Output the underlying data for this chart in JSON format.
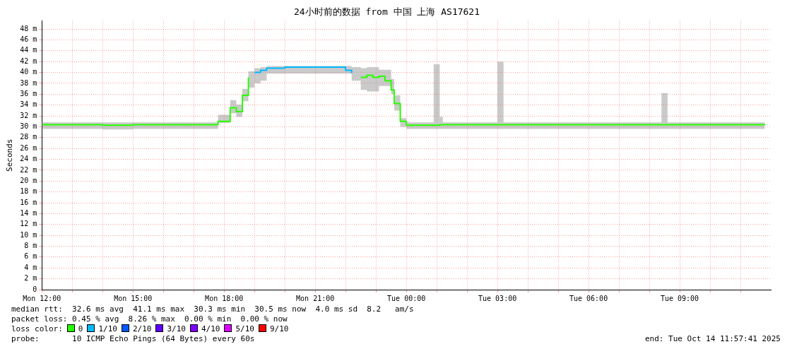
{
  "chart_data": {
    "type": "step",
    "title": "24小时前的数据 from 中国 上海 AS17621",
    "ylabel": "Seconds",
    "legend_title": "loss color:",
    "legend": "bottom",
    "grid": true,
    "x": [
      "2025-10-13T12:00",
      "2025-10-13T13:00",
      "2025-10-13T14:00",
      "2025-10-13T15:00",
      "2025-10-13T16:00",
      "2025-10-13T17:00",
      "2025-10-13T17:48",
      "2025-10-13T18:12",
      "2025-10-13T18:24",
      "2025-10-13T18:36",
      "2025-10-13T18:48",
      "2025-10-13T19:00",
      "2025-10-13T19:12",
      "2025-10-13T19:24",
      "2025-10-13T20:00",
      "2025-10-13T21:00",
      "2025-10-13T22:00",
      "2025-10-13T22:12",
      "2025-10-13T22:30",
      "2025-10-13T22:42",
      "2025-10-13T22:54",
      "2025-10-13T23:06",
      "2025-10-13T23:18",
      "2025-10-13T23:30",
      "2025-10-13T23:36",
      "2025-10-13T23:48",
      "2025-10-14T00:00",
      "2025-10-14T00:54",
      "2025-10-14T01:06",
      "2025-10-14T01:12",
      "2025-10-14T02:00",
      "2025-10-14T03:00",
      "2025-10-14T03:12",
      "2025-10-14T04:00",
      "2025-10-14T05:00",
      "2025-10-14T06:00",
      "2025-10-14T07:00",
      "2025-10-14T08:24",
      "2025-10-14T08:36",
      "2025-10-14T09:00",
      "2025-10-14T10:00",
      "2025-10-14T11:00",
      "2025-10-14T11:48"
    ],
    "series": [
      {
        "name": "0",
        "color": "#26ff00",
        "values": [
          30.4,
          30.4,
          30.3,
          30.4,
          30.4,
          30.4,
          31.0,
          33.5,
          32.8,
          35.8,
          39.1,
          null,
          null,
          null,
          null,
          null,
          null,
          null,
          39.1,
          39.5,
          39.1,
          39.3,
          38.5,
          36.8,
          34.3,
          31.0,
          30.3,
          30.3,
          30.4,
          30.4,
          30.4,
          30.4,
          30.4,
          30.4,
          30.4,
          30.4,
          30.4,
          30.4,
          30.4,
          30.4,
          30.4,
          30.4,
          30.5
        ],
        "lower": [
          29.6,
          29.6,
          29.5,
          29.6,
          29.6,
          29.6,
          30.7,
          32.5,
          31.8,
          34.7,
          37.2,
          38.0,
          38.5,
          39.8,
          39.8,
          39.8,
          39.8,
          38.5,
          36.8,
          36.5,
          36.5,
          37.5,
          37.5,
          36.0,
          33.0,
          30.0,
          29.6,
          29.6,
          29.6,
          29.6,
          29.6,
          29.6,
          29.6,
          29.6,
          29.6,
          29.6,
          29.6,
          29.6,
          29.6,
          29.6,
          29.6,
          29.6,
          29.6
        ],
        "upper": [
          30.8,
          30.8,
          30.8,
          30.8,
          30.8,
          30.8,
          32.2,
          34.9,
          34.1,
          37.0,
          40.2,
          40.8,
          41.0,
          41.2,
          41.2,
          41.2,
          41.2,
          41.0,
          40.8,
          41.0,
          41.0,
          40.5,
          40.5,
          38.8,
          35.8,
          31.6,
          30.8,
          41.5,
          31.8,
          30.8,
          30.8,
          42.0,
          30.8,
          30.8,
          30.8,
          30.8,
          30.8,
          36.2,
          30.8,
          30.8,
          30.8,
          30.8,
          30.8
        ]
      },
      {
        "name": "1/10",
        "color": "#00b8ff",
        "values": [
          null,
          null,
          null,
          null,
          null,
          null,
          null,
          null,
          null,
          null,
          null,
          40.0,
          40.4,
          40.8,
          41.0,
          41.0,
          40.4,
          39.9,
          null,
          null,
          null,
          null,
          null,
          null,
          null,
          null,
          null,
          null,
          null,
          null,
          null,
          null,
          null,
          null,
          null,
          null,
          null,
          null,
          null,
          null,
          null,
          null,
          null
        ]
      },
      {
        "name": "2/10",
        "color": "#0059ff",
        "values": [
          null,
          null,
          null,
          null,
          null,
          null,
          null,
          null,
          null,
          null,
          null,
          null,
          null,
          null,
          null,
          null,
          null,
          null,
          null,
          null,
          null,
          null,
          null,
          null,
          null,
          null,
          null,
          null,
          null,
          null,
          null,
          null,
          null,
          null,
          null,
          null,
          null,
          null,
          null,
          null,
          null,
          null,
          null
        ]
      },
      {
        "name": "3/10",
        "color": "#5e00ff",
        "values": [
          null,
          null,
          null,
          null,
          null,
          null,
          null,
          null,
          null,
          null,
          null,
          null,
          null,
          null,
          null,
          null,
          null,
          null,
          null,
          null,
          null,
          null,
          null,
          null,
          null,
          null,
          null,
          null,
          null,
          null,
          null,
          null,
          null,
          null,
          null,
          null,
          null,
          null,
          null,
          null,
          null,
          null,
          null
        ]
      },
      {
        "name": "4/10",
        "color": "#7e00ff",
        "values": [
          null,
          null,
          null,
          null,
          null,
          null,
          null,
          null,
          null,
          null,
          null,
          null,
          null,
          null,
          null,
          null,
          null,
          null,
          null,
          null,
          null,
          null,
          null,
          null,
          null,
          null,
          null,
          null,
          null,
          null,
          null,
          null,
          null,
          null,
          null,
          null,
          null,
          null,
          null,
          null,
          null,
          null,
          null
        ]
      },
      {
        "name": "5/10",
        "color": "#dd00ff",
        "values": [
          null,
          null,
          null,
          null,
          null,
          null,
          null,
          null,
          null,
          null,
          null,
          null,
          null,
          null,
          null,
          null,
          null,
          null,
          null,
          null,
          null,
          null,
          null,
          null,
          null,
          null,
          null,
          null,
          null,
          null,
          null,
          null,
          null,
          null,
          null,
          null,
          null,
          null,
          null,
          null,
          null,
          null,
          null
        ]
      },
      {
        "name": "9/10",
        "color": "#ff0000",
        "values": [
          null,
          null,
          null,
          null,
          null,
          null,
          null,
          null,
          null,
          null,
          null,
          null,
          null,
          null,
          null,
          null,
          null,
          null,
          null,
          null,
          null,
          null,
          null,
          null,
          null,
          null,
          null,
          null,
          null,
          null,
          null,
          null,
          null,
          null,
          null,
          null,
          null,
          null,
          null,
          null,
          null,
          null,
          null
        ]
      }
    ],
    "xlim": [
      "2025-10-13T12:00",
      "2025-10-14T12:00"
    ],
    "xticks": [
      {
        "value": "2025-10-13T12:00",
        "label": "Mon 12:00"
      },
      {
        "value": "2025-10-13T13:00",
        "label": null
      },
      {
        "value": "2025-10-13T14:00",
        "label": null
      },
      {
        "value": "2025-10-13T15:00",
        "label": "Mon 15:00"
      },
      {
        "value": "2025-10-13T16:00",
        "label": null
      },
      {
        "value": "2025-10-13T17:00",
        "label": null
      },
      {
        "value": "2025-10-13T18:00",
        "label": "Mon 18:00"
      },
      {
        "value": "2025-10-13T19:00",
        "label": null
      },
      {
        "value": "2025-10-13T20:00",
        "label": null
      },
      {
        "value": "2025-10-13T21:00",
        "label": "Mon 21:00"
      },
      {
        "value": "2025-10-13T22:00",
        "label": null
      },
      {
        "value": "2025-10-13T23:00",
        "label": null
      },
      {
        "value": "2025-10-14T00:00",
        "label": "Tue 00:00"
      },
      {
        "value": "2025-10-14T01:00",
        "label": null
      },
      {
        "value": "2025-10-14T02:00",
        "label": null
      },
      {
        "value": "2025-10-14T03:00",
        "label": "Tue 03:00"
      },
      {
        "value": "2025-10-14T04:00",
        "label": null
      },
      {
        "value": "2025-10-14T05:00",
        "label": null
      },
      {
        "value": "2025-10-14T06:00",
        "label": "Tue 06:00"
      },
      {
        "value": "2025-10-14T07:00",
        "label": null
      },
      {
        "value": "2025-10-14T08:00",
        "label": null
      },
      {
        "value": "2025-10-14T09:00",
        "label": "Tue 09:00"
      },
      {
        "value": "2025-10-14T10:00",
        "label": null
      },
      {
        "value": "2025-10-14T11:00",
        "label": null
      }
    ],
    "ylim": [
      0,
      49.5
    ],
    "yticks": [
      0,
      {
        "value": 2,
        "label": "2 m"
      },
      {
        "value": 4,
        "label": "4 m"
      },
      {
        "value": 6,
        "label": "6 m"
      },
      {
        "value": 8,
        "label": "8 m"
      },
      {
        "value": 10,
        "label": "10 m"
      },
      {
        "value": 12,
        "label": "12 m"
      },
      {
        "value": 14,
        "label": "14 m"
      },
      {
        "value": 16,
        "label": "16 m"
      },
      {
        "value": 18,
        "label": "18 m"
      },
      {
        "value": 20,
        "label": "20 m"
      },
      {
        "value": 22,
        "label": "22 m"
      },
      {
        "value": 24,
        "label": "24 m"
      },
      {
        "value": 26,
        "label": "26 m"
      },
      {
        "value": 28,
        "label": "28 m"
      },
      {
        "value": 30,
        "label": "30 m"
      },
      {
        "value": 32,
        "label": "32 m"
      },
      {
        "value": 34,
        "label": "34 m"
      },
      {
        "value": 36,
        "label": "36 m"
      },
      {
        "value": 38,
        "label": "38 m"
      },
      {
        "value": 40,
        "label": "40 m"
      },
      {
        "value": 42,
        "label": "42 m"
      },
      {
        "value": 44,
        "label": "44 m"
      },
      {
        "value": 46,
        "label": "46 m"
      },
      {
        "value": 48,
        "label": "48 m"
      }
    ],
    "annotations": [
      "median rtt:  32.6 ms avg  41.1 ms max  30.3 ms min  30.5 ms now  4.0 ms sd  8.2   am/s",
      "packet loss: 0.45 % avg  8.26 % max  0.00 % min  0.00 % now",
      "probe:       10 ICMP Echo Pings (64 Bytes) every 60s",
      "end: Tue Oct 14 11:57:41 2025"
    ]
  }
}
